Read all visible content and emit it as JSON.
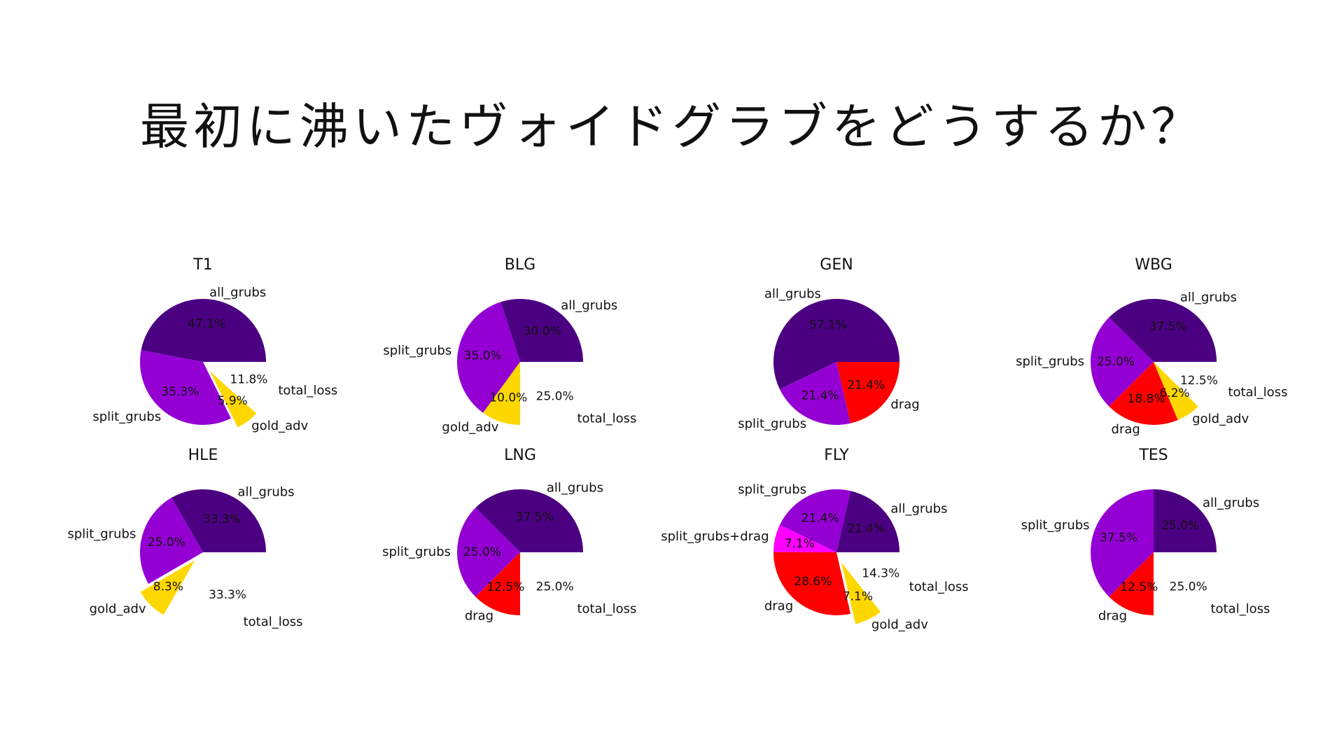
{
  "slide": {
    "title": "最初に沸いたヴォイドグラブをどうするか？"
  },
  "colors": {
    "all_grubs": "#4B0082",
    "split_grubs": "#9400D3",
    "split_grubs+drag": "#FF00FF",
    "drag": "#FF0000",
    "gold_adv": "#FFD700",
    "total_loss": "#FFFFFF"
  },
  "chart_data": [
    {
      "type": "pie",
      "title": "T1",
      "slices": [
        {
          "label": "all_grubs",
          "pct": 47.1,
          "pct_text": "47.1%",
          "explode": false
        },
        {
          "label": "split_grubs",
          "pct": 35.3,
          "pct_text": "35.3%",
          "explode": false
        },
        {
          "label": "gold_adv",
          "pct": 5.9,
          "pct_text": "5.9%",
          "explode": true
        },
        {
          "label": "total_loss",
          "pct": 11.8,
          "pct_text": "11.8%",
          "explode": true
        }
      ]
    },
    {
      "type": "pie",
      "title": "BLG",
      "slices": [
        {
          "label": "all_grubs",
          "pct": 30.0,
          "pct_text": "30.0%",
          "explode": false
        },
        {
          "label": "split_grubs",
          "pct": 35.0,
          "pct_text": "35.0%",
          "explode": false
        },
        {
          "label": "gold_adv",
          "pct": 10.0,
          "pct_text": "10.0%",
          "explode": false
        },
        {
          "label": "total_loss",
          "pct": 25.0,
          "pct_text": "25.0%",
          "explode": true
        }
      ]
    },
    {
      "type": "pie",
      "title": "GEN",
      "slices": [
        {
          "label": "all_grubs",
          "pct": 57.1,
          "pct_text": "57.1%",
          "explode": false
        },
        {
          "label": "split_grubs",
          "pct": 21.4,
          "pct_text": "21.4%",
          "explode": false
        },
        {
          "label": "drag",
          "pct": 21.4,
          "pct_text": "21.4%",
          "explode": false
        }
      ]
    },
    {
      "type": "pie",
      "title": "WBG",
      "slices": [
        {
          "label": "all_grubs",
          "pct": 37.5,
          "pct_text": "37.5%",
          "explode": false
        },
        {
          "label": "split_grubs",
          "pct": 25.0,
          "pct_text": "25.0%",
          "explode": false
        },
        {
          "label": "drag",
          "pct": 18.8,
          "pct_text": "18.8%",
          "explode": false
        },
        {
          "label": "gold_adv",
          "pct": 6.2,
          "pct_text": "6.2%",
          "explode": false
        },
        {
          "label": "total_loss",
          "pct": 12.5,
          "pct_text": "12.5%",
          "explode": true
        }
      ]
    },
    {
      "type": "pie",
      "title": "HLE",
      "slices": [
        {
          "label": "all_grubs",
          "pct": 33.3,
          "pct_text": "33.3%",
          "explode": false
        },
        {
          "label": "split_grubs",
          "pct": 25.0,
          "pct_text": "25.0%",
          "explode": false
        },
        {
          "label": "gold_adv",
          "pct": 8.3,
          "pct_text": "8.3%",
          "explode": true
        },
        {
          "label": "total_loss",
          "pct": 33.3,
          "pct_text": "33.3%",
          "explode": true
        }
      ]
    },
    {
      "type": "pie",
      "title": "LNG",
      "slices": [
        {
          "label": "all_grubs",
          "pct": 37.5,
          "pct_text": "37.5%",
          "explode": false
        },
        {
          "label": "split_grubs",
          "pct": 25.0,
          "pct_text": "25.0%",
          "explode": false
        },
        {
          "label": "drag",
          "pct": 12.5,
          "pct_text": "12.5%",
          "explode": false
        },
        {
          "label": "total_loss",
          "pct": 25.0,
          "pct_text": "25.0%",
          "explode": true
        }
      ]
    },
    {
      "type": "pie",
      "title": "FLY",
      "slices": [
        {
          "label": "all_grubs",
          "pct": 21.4,
          "pct_text": "21.4%",
          "explode": false
        },
        {
          "label": "split_grubs",
          "pct": 21.4,
          "pct_text": "21.4%",
          "explode": false
        },
        {
          "label": "split_grubs+drag",
          "pct": 7.1,
          "pct_text": "7.1%",
          "explode": false
        },
        {
          "label": "drag",
          "pct": 28.6,
          "pct_text": "28.6%",
          "explode": false
        },
        {
          "label": "gold_adv",
          "pct": 7.1,
          "pct_text": "7.1%",
          "explode": true
        },
        {
          "label": "total_loss",
          "pct": 14.3,
          "pct_text": "14.3%",
          "explode": true
        }
      ]
    },
    {
      "type": "pie",
      "title": "TES",
      "slices": [
        {
          "label": "all_grubs",
          "pct": 25.0,
          "pct_text": "25.0%",
          "explode": false
        },
        {
          "label": "split_grubs",
          "pct": 37.5,
          "pct_text": "37.5%",
          "explode": false
        },
        {
          "label": "drag",
          "pct": 12.5,
          "pct_text": "12.5%",
          "explode": false
        },
        {
          "label": "total_loss",
          "pct": 25.0,
          "pct_text": "25.0%",
          "explode": true
        }
      ]
    }
  ]
}
